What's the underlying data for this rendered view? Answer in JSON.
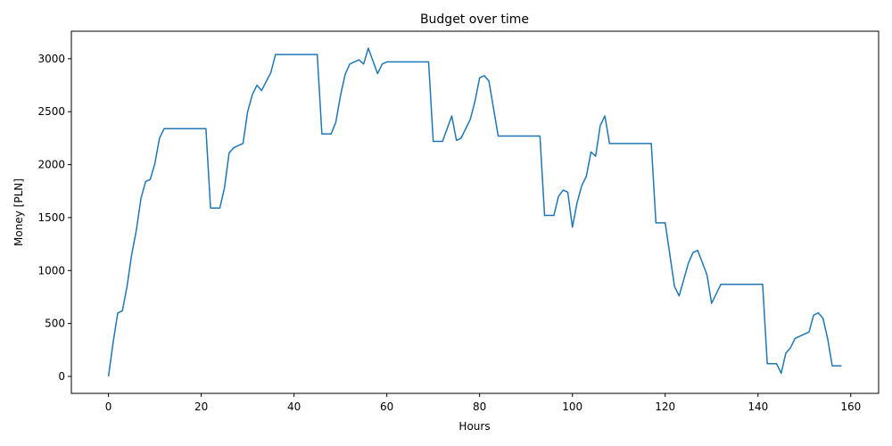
{
  "chart_data": {
    "type": "line",
    "title": "Budget over time",
    "xlabel": "Hours",
    "ylabel": "Money [PLN]",
    "xlim": [
      -8,
      166
    ],
    "ylim": [
      -160,
      3260
    ],
    "xticks": [
      0,
      20,
      40,
      60,
      80,
      100,
      120,
      140,
      160
    ],
    "yticks": [
      0,
      500,
      1000,
      1500,
      2000,
      2500,
      3000
    ],
    "grid": false,
    "legend": "none",
    "series": [
      {
        "color": "#1f77b4",
        "points": [
          [
            0,
            0
          ],
          [
            1,
            320
          ],
          [
            2,
            600
          ],
          [
            3,
            620
          ],
          [
            4,
            850
          ],
          [
            5,
            1150
          ],
          [
            6,
            1380
          ],
          [
            7,
            1680
          ],
          [
            8,
            1840
          ],
          [
            9,
            1860
          ],
          [
            10,
            2010
          ],
          [
            11,
            2250
          ],
          [
            12,
            2340
          ],
          [
            21,
            2340
          ],
          [
            22,
            1590
          ],
          [
            24,
            1590
          ],
          [
            25,
            1780
          ],
          [
            26,
            2110
          ],
          [
            27,
            2160
          ],
          [
            29,
            2200
          ],
          [
            30,
            2500
          ],
          [
            31,
            2660
          ],
          [
            32,
            2750
          ],
          [
            33,
            2700
          ],
          [
            35,
            2870
          ],
          [
            36,
            3040
          ],
          [
            45,
            3040
          ],
          [
            46,
            2290
          ],
          [
            48,
            2290
          ],
          [
            49,
            2400
          ],
          [
            50,
            2650
          ],
          [
            51,
            2850
          ],
          [
            52,
            2950
          ],
          [
            54,
            2990
          ],
          [
            55,
            2950
          ],
          [
            56,
            3100
          ],
          [
            57,
            2980
          ],
          [
            58,
            2860
          ],
          [
            59,
            2950
          ],
          [
            60,
            2970
          ],
          [
            69,
            2970
          ],
          [
            70,
            2220
          ],
          [
            72,
            2220
          ],
          [
            74,
            2460
          ],
          [
            75,
            2230
          ],
          [
            76,
            2250
          ],
          [
            78,
            2430
          ],
          [
            79,
            2600
          ],
          [
            80,
            2820
          ],
          [
            81,
            2840
          ],
          [
            82,
            2790
          ],
          [
            84,
            2270
          ],
          [
            93,
            2270
          ],
          [
            94,
            1520
          ],
          [
            96,
            1520
          ],
          [
            97,
            1700
          ],
          [
            98,
            1760
          ],
          [
            99,
            1740
          ],
          [
            100,
            1410
          ],
          [
            101,
            1640
          ],
          [
            102,
            1800
          ],
          [
            103,
            1890
          ],
          [
            104,
            2120
          ],
          [
            105,
            2080
          ],
          [
            106,
            2370
          ],
          [
            107,
            2460
          ],
          [
            108,
            2200
          ],
          [
            117,
            2200
          ],
          [
            118,
            1450
          ],
          [
            120,
            1450
          ],
          [
            122,
            850
          ],
          [
            123,
            760
          ],
          [
            125,
            1070
          ],
          [
            126,
            1170
          ],
          [
            127,
            1190
          ],
          [
            129,
            960
          ],
          [
            130,
            690
          ],
          [
            132,
            870
          ],
          [
            141,
            870
          ],
          [
            142,
            120
          ],
          [
            144,
            120
          ],
          [
            145,
            30
          ],
          [
            146,
            220
          ],
          [
            147,
            270
          ],
          [
            148,
            360
          ],
          [
            151,
            420
          ],
          [
            152,
            580
          ],
          [
            153,
            600
          ],
          [
            154,
            550
          ],
          [
            155,
            360
          ],
          [
            156,
            100
          ],
          [
            158,
            100
          ]
        ]
      }
    ]
  }
}
